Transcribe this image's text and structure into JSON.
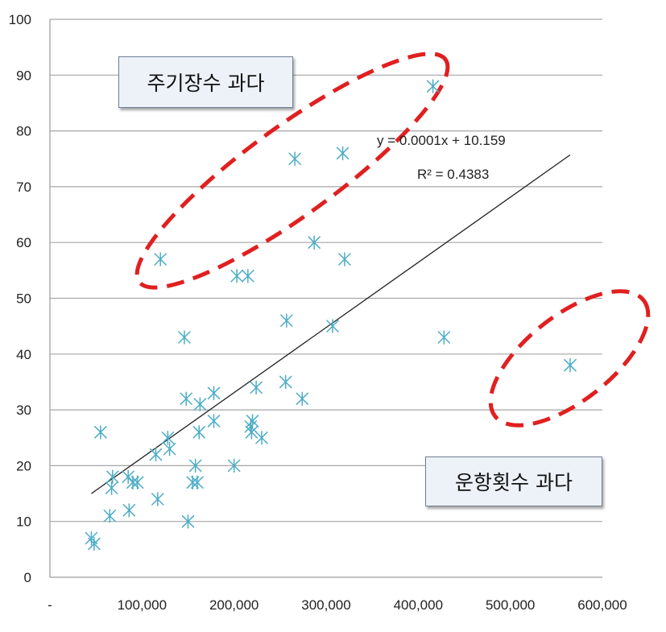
{
  "chart_data": {
    "type": "scatter",
    "x_ticks": [
      "-",
      "100,000",
      "200,000",
      "300,000",
      "400,000",
      "500,000",
      "600,000"
    ],
    "y_ticks": [
      "0",
      "10",
      "20",
      "30",
      "40",
      "50",
      "60",
      "70",
      "80",
      "90",
      "100"
    ],
    "xlim": [
      0,
      600000
    ],
    "ylim": [
      0,
      100
    ],
    "grid": "horizontal",
    "marker": "asterisk",
    "marker_color": "#4bacc6",
    "points": [
      {
        "x": 45000,
        "y": 7
      },
      {
        "x": 48000,
        "y": 6
      },
      {
        "x": 55000,
        "y": 26
      },
      {
        "x": 65000,
        "y": 11
      },
      {
        "x": 67000,
        "y": 16
      },
      {
        "x": 68000,
        "y": 18
      },
      {
        "x": 85000,
        "y": 18
      },
      {
        "x": 86000,
        "y": 12
      },
      {
        "x": 90000,
        "y": 17
      },
      {
        "x": 95000,
        "y": 17
      },
      {
        "x": 115000,
        "y": 22
      },
      {
        "x": 117000,
        "y": 14
      },
      {
        "x": 120000,
        "y": 57
      },
      {
        "x": 128000,
        "y": 25
      },
      {
        "x": 130000,
        "y": 23
      },
      {
        "x": 146000,
        "y": 43
      },
      {
        "x": 148000,
        "y": 32
      },
      {
        "x": 150000,
        "y": 10
      },
      {
        "x": 155000,
        "y": 17
      },
      {
        "x": 158000,
        "y": 20
      },
      {
        "x": 160000,
        "y": 17
      },
      {
        "x": 162000,
        "y": 26
      },
      {
        "x": 163000,
        "y": 31
      },
      {
        "x": 178000,
        "y": 28
      },
      {
        "x": 178000,
        "y": 33
      },
      {
        "x": 200000,
        "y": 20
      },
      {
        "x": 203000,
        "y": 54
      },
      {
        "x": 215000,
        "y": 54
      },
      {
        "x": 218000,
        "y": 27
      },
      {
        "x": 219000,
        "y": 26
      },
      {
        "x": 220000,
        "y": 28
      },
      {
        "x": 224000,
        "y": 34
      },
      {
        "x": 230000,
        "y": 25
      },
      {
        "x": 256000,
        "y": 35
      },
      {
        "x": 257000,
        "y": 46
      },
      {
        "x": 266000,
        "y": 75
      },
      {
        "x": 274000,
        "y": 32
      },
      {
        "x": 287000,
        "y": 60
      },
      {
        "x": 307000,
        "y": 45
      },
      {
        "x": 318000,
        "y": 76
      },
      {
        "x": 320000,
        "y": 57
      },
      {
        "x": 416000,
        "y": 88
      },
      {
        "x": 428000,
        "y": 43
      },
      {
        "x": 565000,
        "y": 38
      }
    ],
    "trendline": {
      "type": "linear",
      "x_range": [
        45000,
        565000
      ],
      "y_range": [
        15,
        75.7
      ],
      "equation_label": "y = 0.0001x + 10.159",
      "r2_label": "R² = 0.4383",
      "color": "#222222"
    },
    "annotations": [
      {
        "text": "주기장수 과다",
        "highlight_color": "#e02020"
      },
      {
        "text": "운항횟수 과다",
        "highlight_color": "#e02020"
      }
    ]
  }
}
